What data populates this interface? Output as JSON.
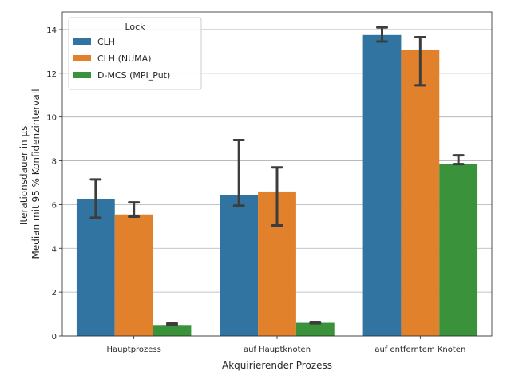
{
  "chart_data": {
    "type": "bar",
    "xlabel": "Akquirierender Prozess",
    "ylabel_lines": [
      "Iterationsdauer in µs",
      "Median mit 95 % Konfidenzintervall"
    ],
    "categories": [
      "Hauptprozess",
      "auf Hauptknoten",
      "auf entferntem Knoten"
    ],
    "ylim": [
      0,
      14.8
    ],
    "yticks": [
      "0",
      "2",
      "4",
      "6",
      "8",
      "10",
      "12",
      "14"
    ],
    "grid": "horizontal",
    "legend": {
      "title": "Lock",
      "placement": "top-left"
    },
    "series": [
      {
        "name": "CLH",
        "color": "#3274a1",
        "values": [
          6.25,
          6.45,
          13.75
        ],
        "ci_low": [
          5.4,
          5.95,
          13.45
        ],
        "ci_high": [
          7.15,
          8.95,
          14.1
        ]
      },
      {
        "name": "CLH (NUMA)",
        "color": "#e1812c",
        "values": [
          5.55,
          6.6,
          13.05
        ],
        "ci_low": [
          5.45,
          5.05,
          11.45
        ],
        "ci_high": [
          6.1,
          7.7,
          13.65
        ]
      },
      {
        "name": "D-MCS (MPI_Put)",
        "color": "#3a923a",
        "values": [
          0.5,
          0.6,
          7.85
        ],
        "ci_low": [
          0.5,
          0.58,
          7.85
        ],
        "ci_high": [
          0.57,
          0.64,
          8.25
        ]
      }
    ]
  }
}
